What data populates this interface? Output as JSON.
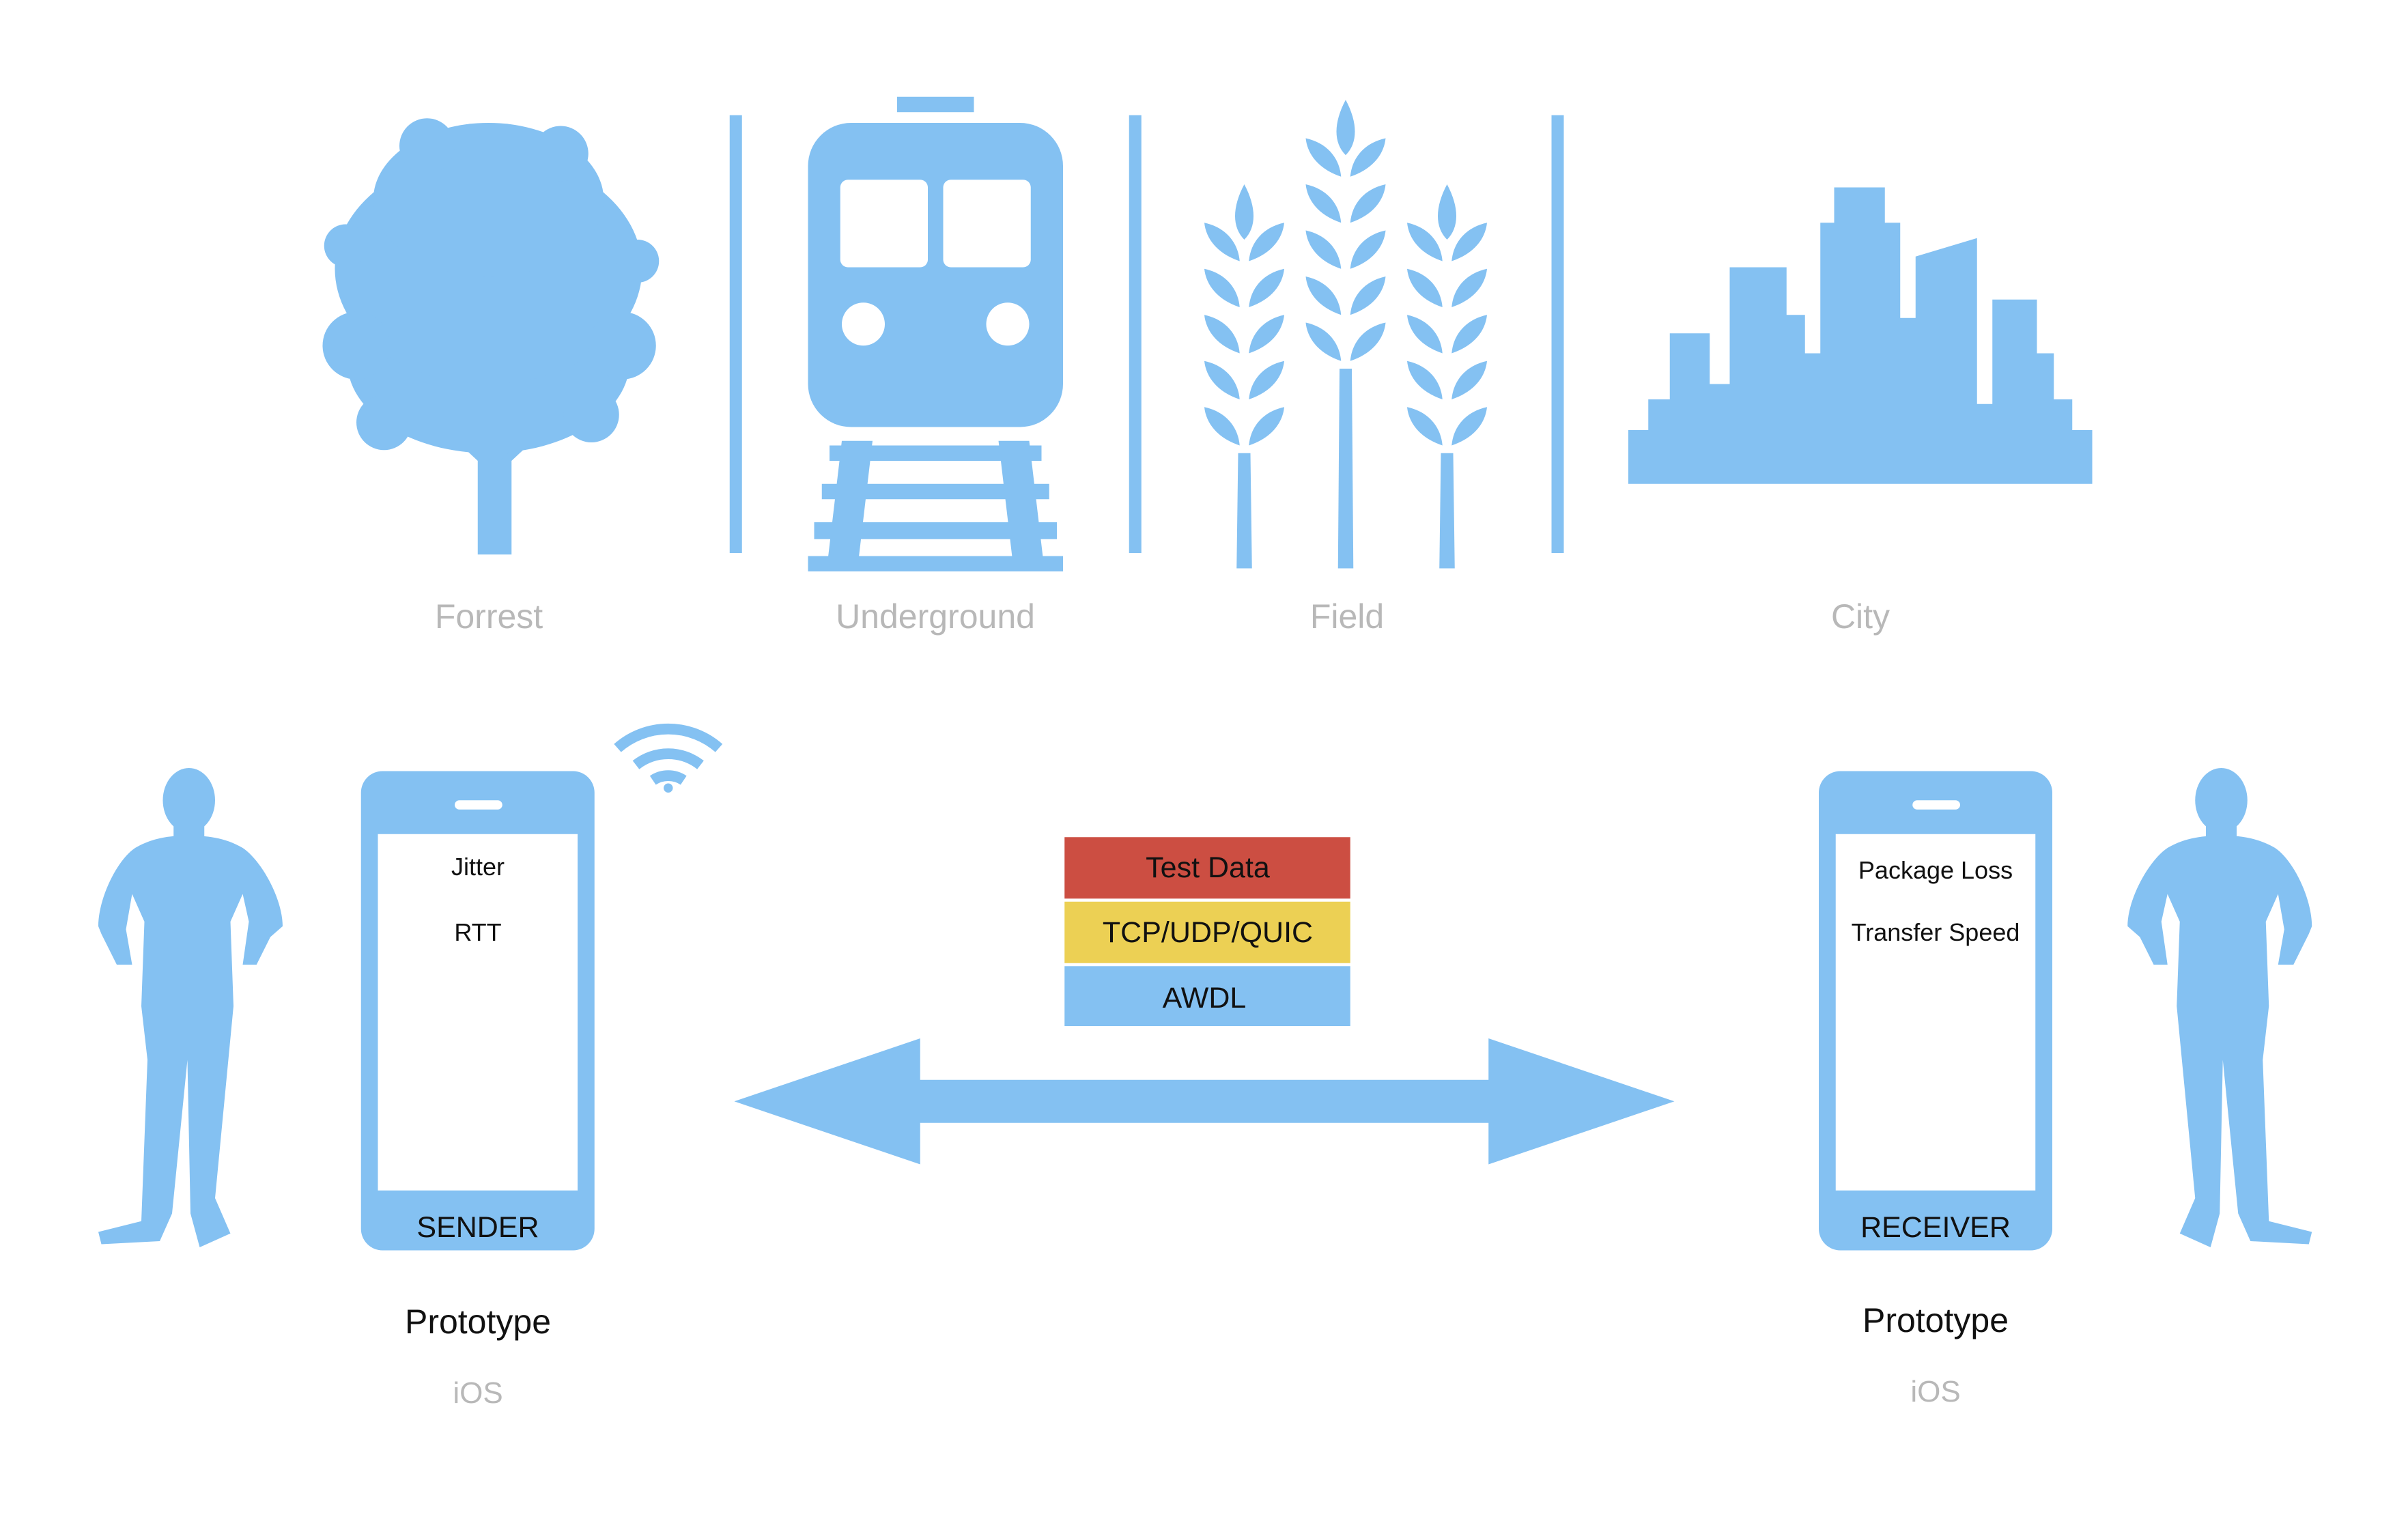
{
  "colors": {
    "icon": "#84c1f2",
    "label_gray": "#b8b8b8",
    "text_dark": "#111111",
    "stack_test_data": "#cc4e42",
    "stack_transport": "#ecd054",
    "stack_link": "#84c1f2"
  },
  "environments": [
    {
      "icon": "tree-icon",
      "label": "Forrest"
    },
    {
      "icon": "train-icon",
      "label": "Underground"
    },
    {
      "icon": "wheat-icon",
      "label": "Field"
    },
    {
      "icon": "city-skyline-icon",
      "label": "City"
    }
  ],
  "sender": {
    "role": "SENDER",
    "metrics": [
      "Jitter",
      "RTT"
    ],
    "title": "Prototype",
    "platform": "iOS",
    "icons": [
      "person-icon",
      "phone-icon",
      "wifi-icon"
    ]
  },
  "receiver": {
    "role": "RECEIVER",
    "metrics": [
      "Package Loss",
      "Transfer Speed"
    ],
    "title": "Prototype",
    "platform": "iOS",
    "icons": [
      "person-icon",
      "phone-icon"
    ]
  },
  "protocol_stack": [
    {
      "label": "Test Data",
      "color": "#cc4e42"
    },
    {
      "label": "TCP/UDP/QUIC",
      "color": "#ecd054"
    },
    {
      "label": "AWDL",
      "color": "#84c1f2"
    }
  ],
  "link_arrow": "double-arrow-icon"
}
